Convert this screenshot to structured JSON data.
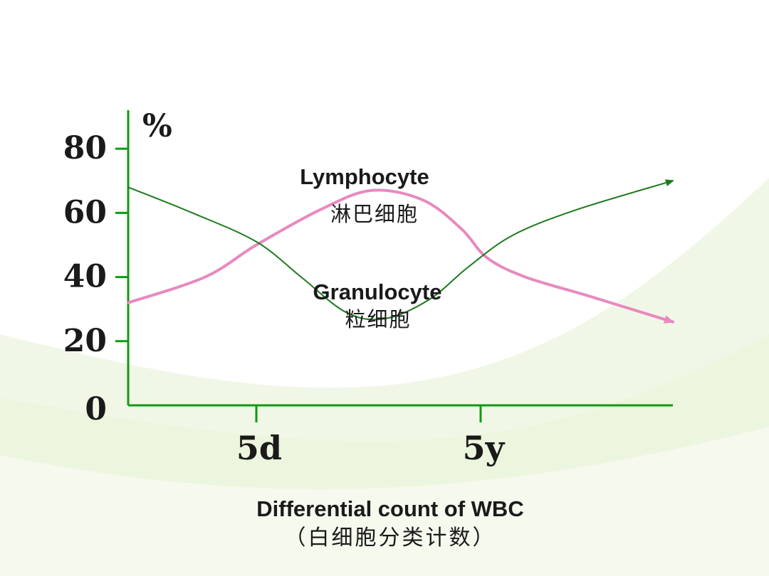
{
  "chart_data": {
    "type": "line",
    "title": "Differential count of WBC",
    "subtitle": "（白细胞分类计数）",
    "ylabel": "%",
    "xlabel": "",
    "ylim": [
      0,
      92
    ],
    "y_ticks": [
      "0",
      "20",
      "40",
      "60",
      "80"
    ],
    "y_tick_values": [
      0,
      20,
      40,
      60,
      80
    ],
    "x_ticks": [
      "5d",
      "5y"
    ],
    "x_tick_positions": [
      2,
      5.5
    ],
    "xlim": [
      0,
      8.5
    ],
    "grid": false,
    "legend": "none",
    "series": [
      {
        "name": "Lymphocyte",
        "name_cn": "淋巴细胞",
        "color": "#e889c0",
        "x": [
          0,
          1.2,
          2,
          3,
          3.8,
          4.6,
          5.2,
          5.6,
          6.2,
          7.2,
          8.5
        ],
        "y": [
          32,
          40,
          50,
          61,
          67,
          64,
          55,
          46,
          40,
          34,
          26
        ]
      },
      {
        "name": "Granulocyte",
        "name_cn": "粒细胞",
        "color": "#1e7a1e",
        "x": [
          0,
          1,
          2,
          2.7,
          3.4,
          4,
          4.7,
          5.3,
          6,
          7,
          8.5
        ],
        "y": [
          68,
          60,
          51,
          40,
          29,
          27,
          33,
          43,
          53,
          61,
          70
        ]
      }
    ],
    "axis_color": "#119911"
  }
}
